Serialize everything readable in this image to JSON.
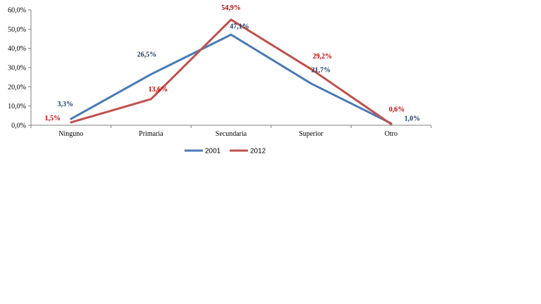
{
  "chart_data": {
    "type": "line",
    "categories": [
      "Ninguno",
      "Primaria",
      "Secundaria",
      "Superior",
      "Otro"
    ],
    "series": [
      {
        "name": "2001",
        "values": [
          3.3,
          26.5,
          47.1,
          21.7,
          1.0
        ],
        "labels": [
          "3,3%",
          "26,5%",
          "47,1%",
          "21,7%",
          "1,0%"
        ],
        "color": "#4a7ab5",
        "label_color": "#1f3b63"
      },
      {
        "name": "2012",
        "values": [
          1.5,
          13.6,
          54.9,
          29.2,
          0.6
        ],
        "labels": [
          "1,5%",
          "13,6%",
          "54,9%",
          "29,2%",
          "0,6%"
        ],
        "color": "#c0504d",
        "label_color": "#c00000"
      }
    ],
    "y_ticks": [
      "0,0%",
      "10,0%",
      "20,0%",
      "30,0%",
      "40,0%",
      "50,0%",
      "60,0%"
    ],
    "ylim": [
      0,
      60
    ],
    "y_step": 10,
    "grid": false,
    "legend_position": "bottom",
    "axis_color": "#808080"
  }
}
